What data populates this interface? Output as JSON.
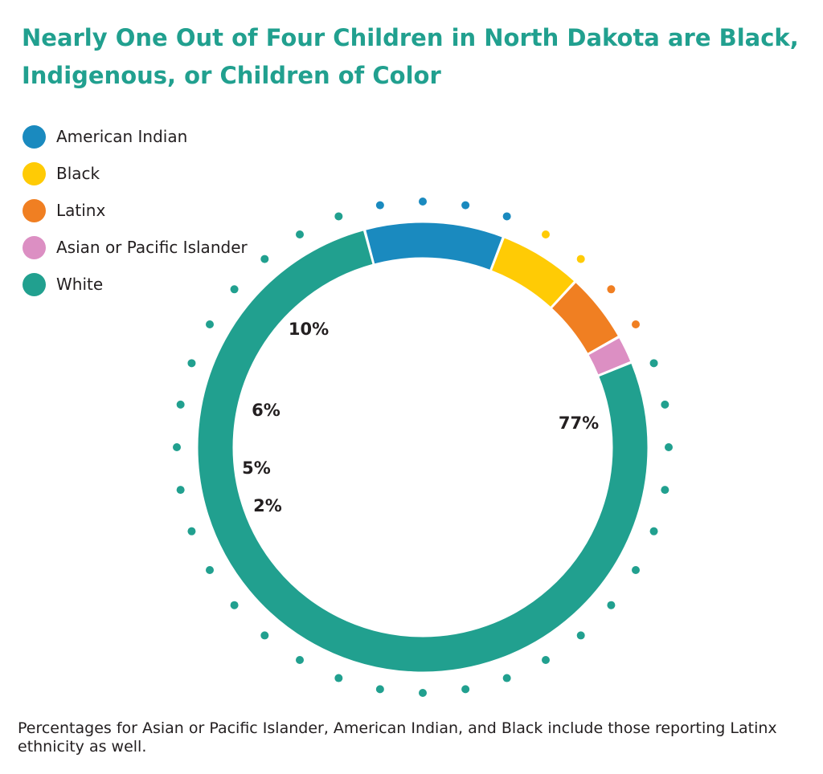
{
  "title": "Nearly One Out of Four Children in North Dakota are Black, Indigenous, or Children of Color",
  "footnote": "Percentages for Asian or Pacific Islander, American Indian, and Black include those reporting Latinx ethnicity as well.",
  "chart_data": {
    "type": "pie",
    "variant": "donut",
    "title": "Nearly One Out of Four Children in North Dakota are Black, Indigenous, or Children of Color",
    "legend_position": "top-left",
    "slices": [
      {
        "name": "American Indian",
        "value": 10,
        "label": "10%",
        "color": "#1a8abf"
      },
      {
        "name": "Black",
        "value": 6,
        "label": "6%",
        "color": "#ffcb05"
      },
      {
        "name": "Latinx",
        "value": 5,
        "label": "5%",
        "color": "#f07f22"
      },
      {
        "name": "Asian or Pacific Islander",
        "value": 2,
        "label": "2%",
        "color": "#dc8fc3"
      },
      {
        "name": "White",
        "value": 77,
        "label": "77%",
        "color": "#21a08f"
      }
    ]
  }
}
